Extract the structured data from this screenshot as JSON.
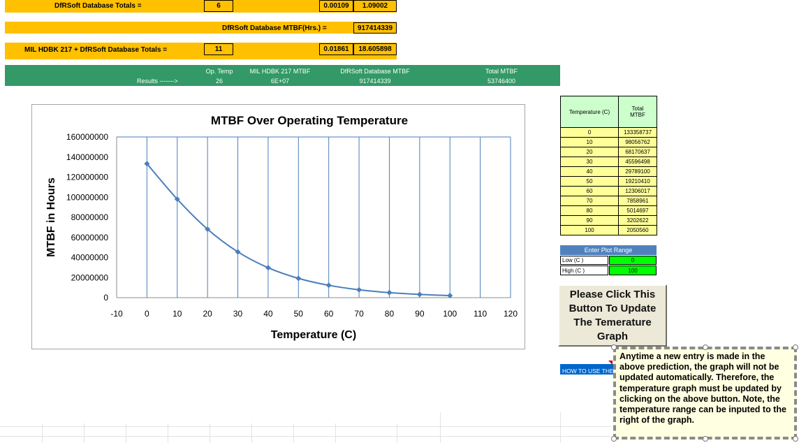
{
  "totals": {
    "dfr_label": "DfRSoft Database Totals =",
    "dfr_count": "6",
    "dfr_val1": "0.00109",
    "dfr_val2": "1.09002",
    "mtbf_label": "DfRSoft Database MTBF(Hrs.) =",
    "mtbf_value": "917414339",
    "mil_label": "MIL HDBK 217  +  DfRSoft Database Totals =",
    "mil_count": "11",
    "mil_val1": "0.01861",
    "mil_val2": "18.605898"
  },
  "results": {
    "row_label": "Results ------->",
    "headers": [
      "Op. Temp",
      "MIL HDBK 217 MTBF",
      "DfRSoft Database MTBF",
      "Total MTBF"
    ],
    "values": [
      "26",
      "6E+07",
      "917414339",
      "53746400"
    ]
  },
  "chart_data": {
    "type": "line",
    "title": "MTBF Over Operating Temperature",
    "xlabel": "Temperature (C)",
    "ylabel": "MTBF in Hours",
    "xlim": [
      -10,
      120
    ],
    "ylim": [
      0,
      160000000
    ],
    "x_ticks": [
      "-10",
      "0",
      "10",
      "20",
      "30",
      "40",
      "50",
      "60",
      "70",
      "80",
      "90",
      "100",
      "110",
      "120"
    ],
    "y_ticks": [
      "0",
      "20000000",
      "40000000",
      "60000000",
      "80000000",
      "100000000",
      "120000000",
      "140000000",
      "160000000"
    ],
    "grid": "vertical",
    "series": [
      {
        "x": [
          0,
          10,
          20,
          30,
          40,
          50,
          60,
          70,
          80,
          90,
          100
        ],
        "values": [
          133358737,
          98056762,
          68170637,
          45596498,
          29789100,
          19210410,
          12306017,
          7858961,
          5014697,
          3202622,
          2050560
        ]
      }
    ],
    "colors": {
      "line": "#4a7ebb",
      "marker": "#4a7ebb"
    }
  },
  "temp_table": {
    "header_temp": "Temperature (C)",
    "header_mtbf": "Total MTBF",
    "rows": [
      [
        "0",
        "133358737"
      ],
      [
        "10",
        "98056762"
      ],
      [
        "20",
        "68170637"
      ],
      [
        "30",
        "45596498"
      ],
      [
        "40",
        "29789100"
      ],
      [
        "50",
        "19210410"
      ],
      [
        "60",
        "12306017"
      ],
      [
        "70",
        "7858961"
      ],
      [
        "80",
        "5014697"
      ],
      [
        "90",
        "3202622"
      ],
      [
        "100",
        "2050560"
      ]
    ]
  },
  "plot_range": {
    "title": "Enter Plot Range",
    "low_label": "Low (C )",
    "low_value": "0",
    "high_label": "High (C )",
    "high_value": "100"
  },
  "update_button": {
    "label": "Please Click This Button To Update The Temerature Graph"
  },
  "how_to_label": "HOW TO USE THE",
  "comment": {
    "text": "Anytime a new entry is made in the above prediction, the graph will not be updated automatically. Therefore, the temperature graph must be updated by clicking on the above button. Note, the temperature range can be inputed to the right of the graph."
  },
  "colors": {
    "yellow": "#ffc000",
    "green_band": "#339966",
    "table_header": "#ccffcc",
    "table_row": "#ffff99",
    "range_title": "#4f81bd",
    "range_input": "#00ff00",
    "how_to": "#0066cc",
    "comment_bg": "#ffffe1"
  }
}
